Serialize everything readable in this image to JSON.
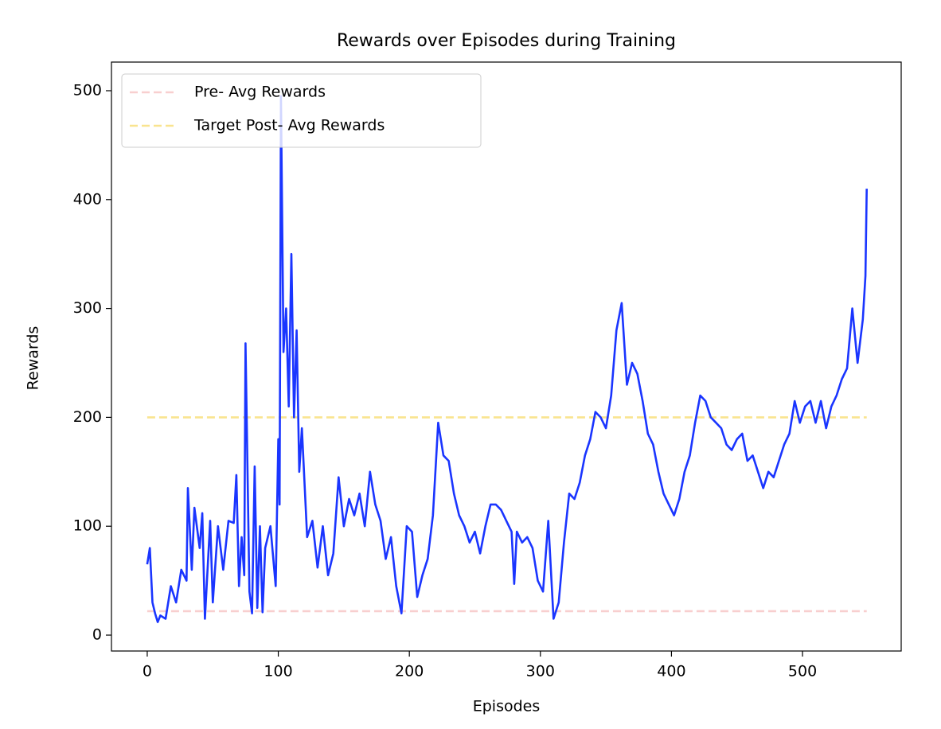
{
  "chart_data": {
    "type": "line",
    "title": "Rewards over Episodes during Training",
    "x_label": "Episodes",
    "y_label": "Rewards",
    "xlim": [
      -27.3,
      575.3
    ],
    "ylim": [
      -14.6,
      526.3
    ],
    "xticks": [
      0,
      100,
      200,
      300,
      400,
      500
    ],
    "yticks": [
      0,
      100,
      200,
      300,
      400,
      500
    ],
    "legend_position": "upper left",
    "series": [
      {
        "color": "#1a35ff",
        "x": [
          0,
          2,
          4,
          6,
          8,
          10,
          14,
          18,
          22,
          26,
          30,
          31,
          34,
          36,
          40,
          42,
          44,
          48,
          50,
          54,
          58,
          62,
          66,
          68,
          70,
          72,
          74,
          75,
          78,
          80,
          82,
          84,
          86,
          88,
          90,
          94,
          98,
          100,
          101,
          102,
          104,
          106,
          108,
          110,
          112,
          114,
          116,
          118,
          122,
          126,
          130,
          134,
          138,
          142,
          146,
          150,
          154,
          158,
          162,
          166,
          170,
          174,
          178,
          182,
          186,
          190,
          194,
          198,
          202,
          206,
          210,
          214,
          218,
          222,
          226,
          230,
          234,
          238,
          242,
          246,
          250,
          254,
          258,
          262,
          266,
          270,
          274,
          278,
          280,
          282,
          286,
          290,
          294,
          298,
          302,
          306,
          310,
          314,
          318,
          322,
          326,
          330,
          334,
          338,
          342,
          346,
          350,
          354,
          358,
          362,
          366,
          370,
          374,
          378,
          382,
          386,
          390,
          394,
          398,
          402,
          406,
          410,
          414,
          418,
          422,
          426,
          430,
          434,
          438,
          442,
          446,
          450,
          454,
          458,
          462,
          466,
          470,
          474,
          478,
          482,
          486,
          490,
          494,
          498,
          502,
          506,
          510,
          514,
          518,
          522,
          526,
          530,
          534,
          538,
          542,
          546,
          548,
          549
        ],
        "values": [
          65,
          80,
          30,
          20,
          12,
          18,
          15,
          45,
          30,
          60,
          50,
          135,
          60,
          117,
          80,
          112,
          15,
          105,
          30,
          100,
          60,
          105,
          103,
          147,
          45,
          90,
          55,
          268,
          40,
          20,
          155,
          25,
          100,
          21,
          80,
          100,
          45,
          180,
          120,
          495,
          260,
          300,
          210,
          350,
          200,
          280,
          150,
          190,
          90,
          105,
          62,
          100,
          55,
          75,
          145,
          100,
          125,
          110,
          130,
          100,
          150,
          120,
          105,
          70,
          90,
          45,
          20,
          100,
          95,
          35,
          55,
          70,
          110,
          195,
          165,
          160,
          130,
          110,
          100,
          85,
          95,
          75,
          100,
          120,
          120,
          115,
          105,
          95,
          47,
          95,
          85,
          90,
          80,
          50,
          40,
          105,
          15,
          30,
          85,
          130,
          125,
          140,
          165,
          180,
          205,
          200,
          190,
          220,
          280,
          305,
          230,
          250,
          240,
          215,
          185,
          175,
          150,
          130,
          120,
          110,
          125,
          150,
          165,
          195,
          220,
          215,
          200,
          195,
          190,
          175,
          170,
          180,
          185,
          160,
          165,
          150,
          135,
          150,
          145,
          160,
          175,
          185,
          215,
          195,
          210,
          215,
          195,
          215,
          190,
          210,
          220,
          235,
          245,
          300,
          250,
          290,
          330,
          410
        ]
      }
    ],
    "reference_lines": [
      {
        "name": "Pre- Avg Rewards",
        "color": "#f8cfcf",
        "y": 22,
        "x": [
          0,
          549
        ]
      },
      {
        "name": "Target Post- Avg Rewards",
        "color": "#f9e48f",
        "y": 200,
        "x": [
          0,
          549
        ]
      }
    ]
  }
}
